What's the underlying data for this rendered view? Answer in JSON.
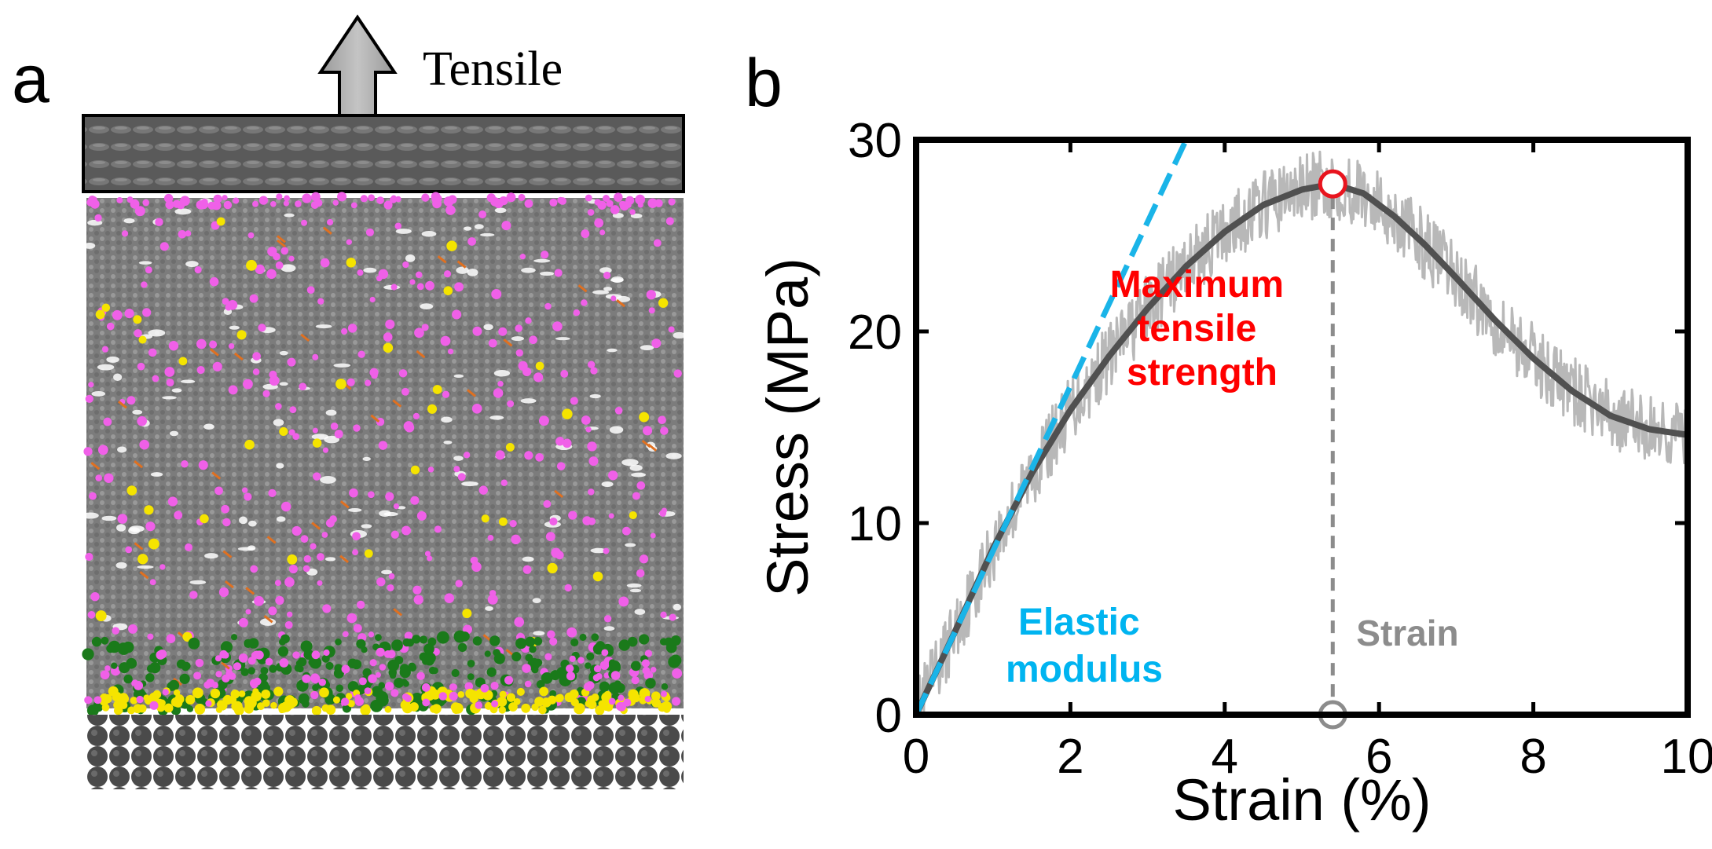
{
  "panel_a": {
    "label": "a",
    "arrow_label": "Tensile",
    "colors": {
      "plate": "#5f5f5f",
      "polymer": "#8a8a8a",
      "magenta": "#f060e8",
      "yellow": "#f5e400",
      "green": "#1a7a1a",
      "orange": "#e07020",
      "substrate": "#4a4a4a",
      "arrow": "#a9a9a9"
    }
  },
  "panel_b": {
    "label": "b",
    "annotations": {
      "max_label_line1": "Maximum",
      "max_label_line2": "tensile",
      "max_label_line3": "strength",
      "elastic_line1": "Elastic",
      "elastic_line2": "modulus",
      "strain_label": "Strain"
    },
    "colors": {
      "raw": "#b8b8b8",
      "smooth": "#505050",
      "modulus": "#1ab4e8",
      "max_marker": "#e8141e",
      "strain_marker": "#8c8c8c",
      "max_text": "#ff0000",
      "elastic_text": "#00b4f0",
      "strain_text": "#8c8c8c"
    }
  },
  "chart_data": {
    "type": "line",
    "title": "",
    "xlabel": "Strain (%)",
    "ylabel": "Stress (MPa)",
    "xlim": [
      0,
      10
    ],
    "ylim": [
      0,
      30
    ],
    "xticks": [
      0,
      2,
      4,
      6,
      8,
      10
    ],
    "yticks": [
      0,
      10,
      20,
      30
    ],
    "series": [
      {
        "name": "Smoothed stress",
        "x": [
          0,
          0.5,
          1.0,
          1.5,
          2.0,
          2.5,
          3.0,
          3.5,
          4.0,
          4.5,
          5.0,
          5.4,
          5.8,
          6.2,
          6.6,
          7.0,
          7.5,
          8.0,
          8.5,
          9.0,
          9.5,
          10.0
        ],
        "y": [
          0,
          4.3,
          8.7,
          12.6,
          15.9,
          18.7,
          21.2,
          23.4,
          25.2,
          26.6,
          27.4,
          27.7,
          27.2,
          26.0,
          24.5,
          22.8,
          20.6,
          18.6,
          16.9,
          15.6,
          14.9,
          14.6
        ]
      },
      {
        "name": "Elastic modulus fit",
        "x": [
          0,
          3.5
        ],
        "y": [
          0,
          30
        ]
      }
    ],
    "markers": [
      {
        "name": "Maximum tensile strength",
        "x": 5.4,
        "y": 27.7
      },
      {
        "name": "Strain at maximum",
        "x": 5.4,
        "y": 0
      }
    ]
  }
}
